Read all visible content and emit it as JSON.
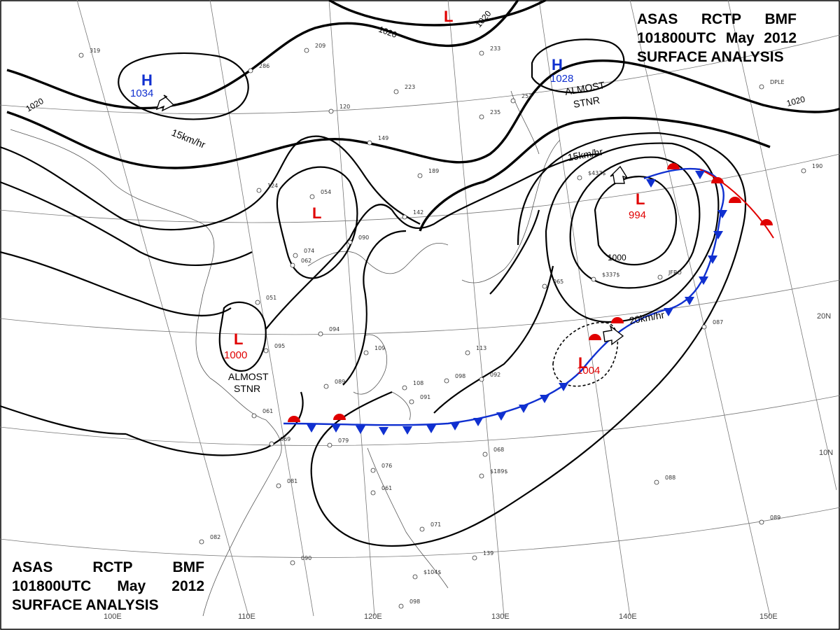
{
  "header_top": {
    "line1": [
      "ASAS",
      "RCTP",
      "BMF"
    ],
    "line2": [
      "101800UTC",
      "May",
      "2012"
    ],
    "line3": "SURFACE ANALYSIS"
  },
  "header_bottom": {
    "line1": [
      "ASAS",
      "RCTP",
      "BMF"
    ],
    "line2": [
      "101800UTC",
      "May",
      "2012"
    ],
    "line3": "SURFACE ANALYSIS"
  },
  "longitude_labels": [
    "100E",
    "110E",
    "120E",
    "130E",
    "140E",
    "150E"
  ],
  "latitude_labels": [
    "10N",
    "20N"
  ],
  "isobar_labels": [
    "1020",
    "1020",
    "1020",
    "1020",
    "1000"
  ],
  "pressure_centers": [
    {
      "type": "H",
      "pressure": "1034"
    },
    {
      "type": "H",
      "pressure": "1028"
    },
    {
      "type": "L",
      "pressure": "994"
    },
    {
      "type": "L",
      "pressure": "1004"
    },
    {
      "type": "L",
      "pressure": "1000"
    },
    {
      "type": "L",
      "pressure": ""
    },
    {
      "type": "L",
      "pressure": ""
    }
  ],
  "movement_notes": [
    "15km/hr",
    "15km/hr",
    "20km/hr",
    "ALMOST",
    "STNR",
    "ALMOST",
    "STNR"
  ],
  "station_labels": [
    "319",
    "286",
    "209",
    "223",
    "235",
    "233",
    "253",
    "120",
    "149",
    "189",
    "142",
    "054",
    "124",
    "090",
    "087",
    "065",
    "113",
    "089",
    "076",
    "061",
    "082",
    "081",
    "090",
    "139",
    "071",
    "098",
    "088",
    "089",
    "190",
    "069",
    "061",
    "062",
    "095",
    "051",
    "074",
    "094",
    "109",
    "108",
    "091",
    "092",
    "098",
    "079",
    "068",
    "$189$",
    "$104$",
    "$337$",
    "$437$",
    "DPLE",
    "JFRO"
  ],
  "colors": {
    "warm_front": "#e00000",
    "cold_front": "#1030d0",
    "isobar": "#000000",
    "coast": "#555555"
  }
}
